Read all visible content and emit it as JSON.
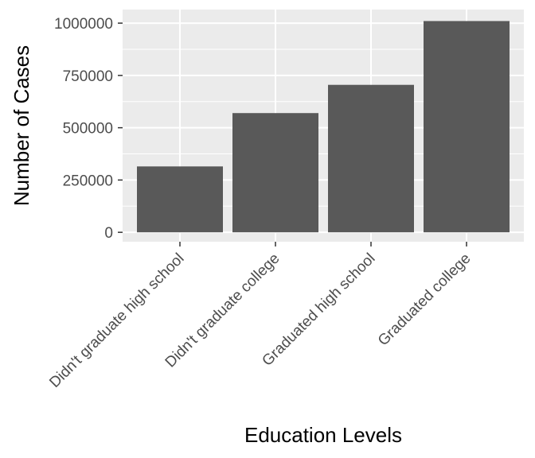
{
  "chart_data": {
    "type": "bar",
    "categories": [
      "Didn't graduate high school",
      "Didn't graduate college",
      "Graduated high school",
      "Graduated college"
    ],
    "values": [
      315000,
      570000,
      705000,
      1010000
    ],
    "title": "",
    "xlabel": "Education Levels",
    "ylabel": "Number of Cases",
    "ylim": [
      -45000,
      1065000
    ],
    "yticks": [
      0,
      250000,
      500000,
      750000,
      1000000
    ],
    "ytick_labels": [
      "0",
      "250000",
      "500000",
      "750000",
      "1000000"
    ],
    "grid": true,
    "legend": "none",
    "colors": {
      "panel": "#ebebeb",
      "gridline": "#ffffff",
      "bar": "#595959",
      "tick": "#333333",
      "tick_text": "#4d4d4d"
    }
  }
}
